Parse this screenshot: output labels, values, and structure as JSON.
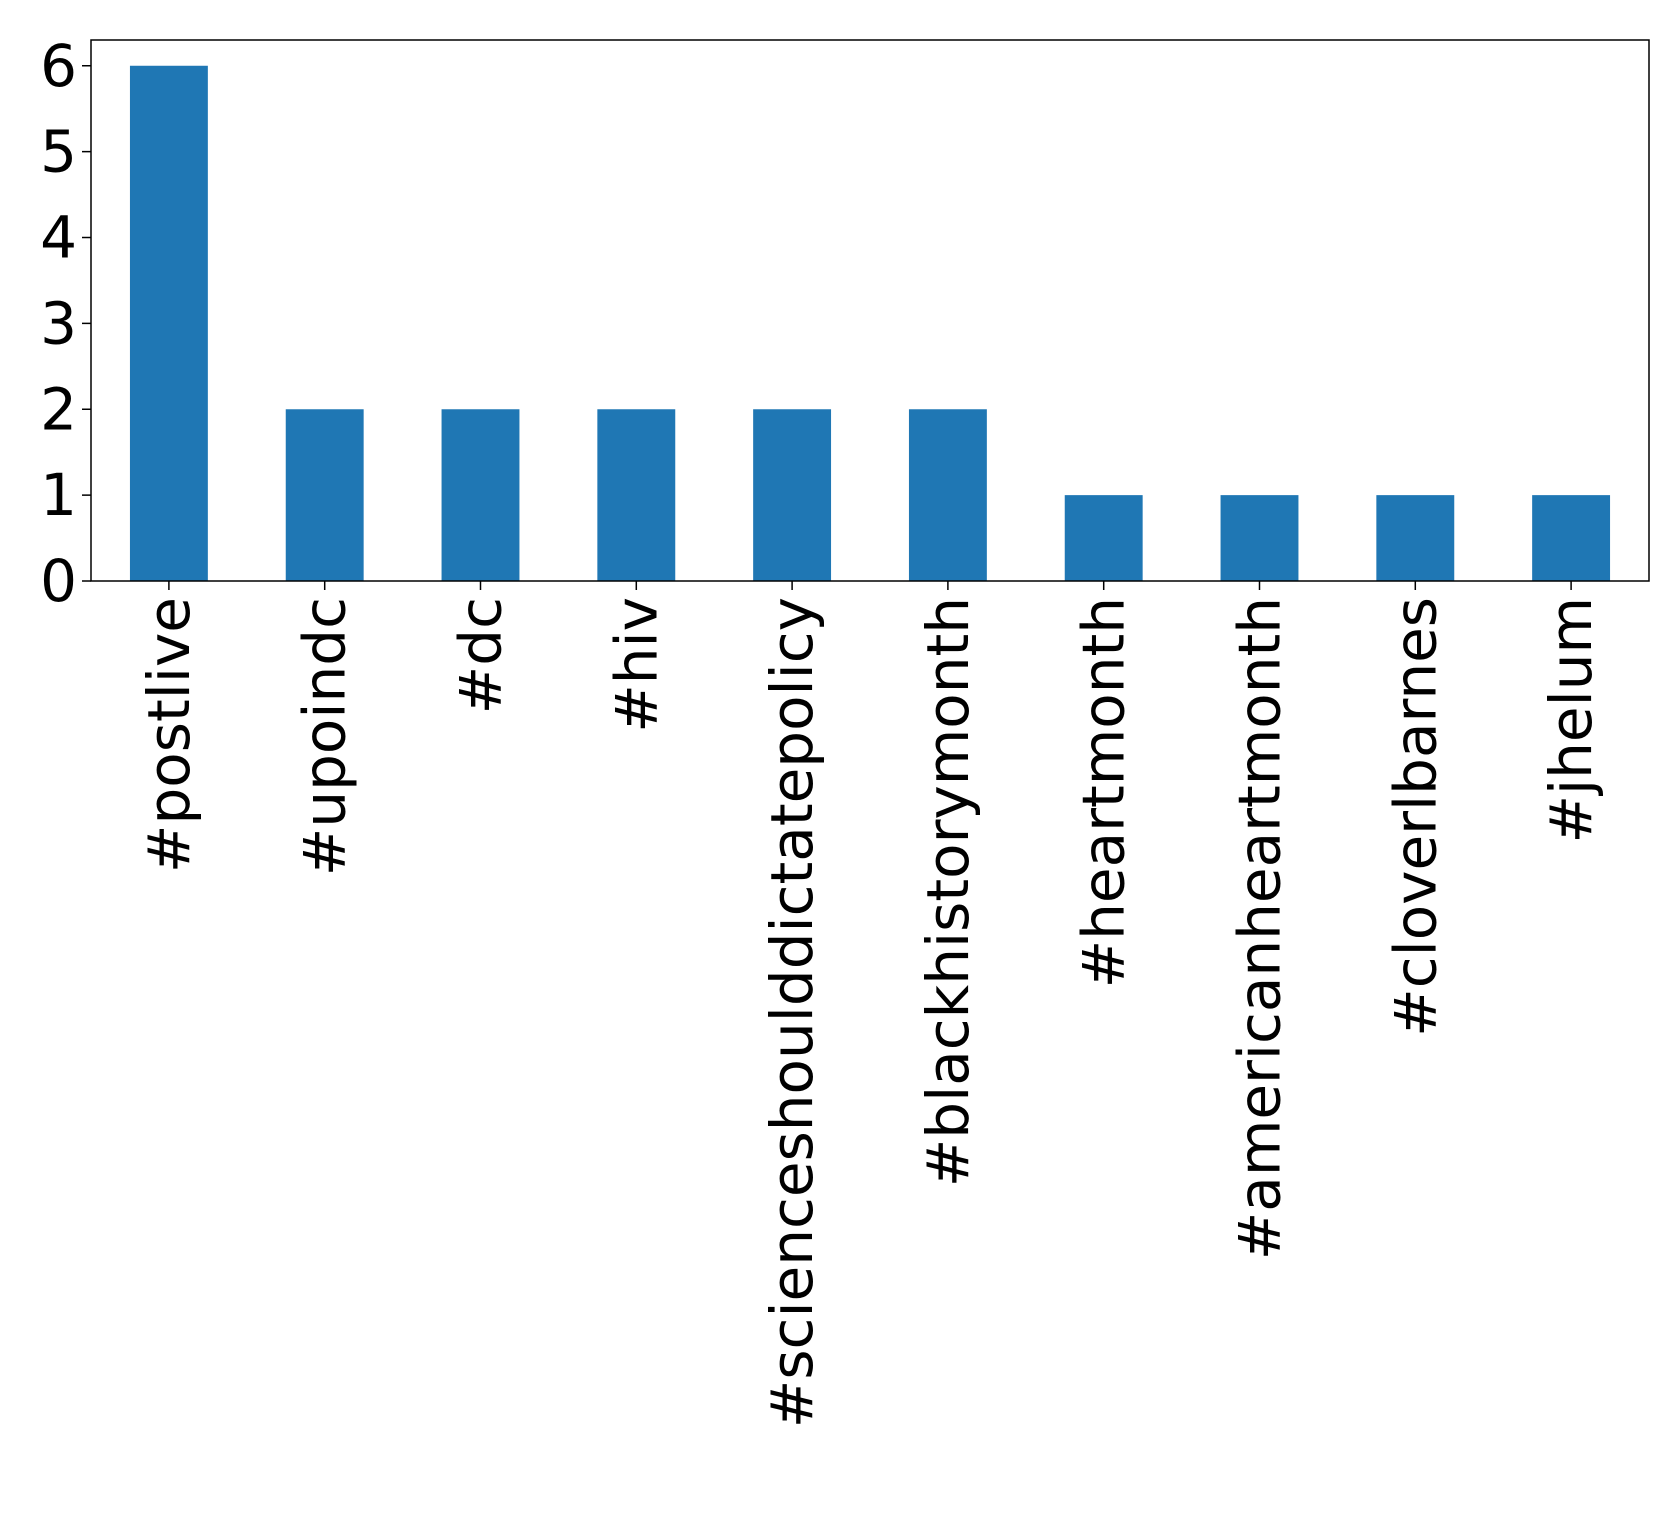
{
  "chart_data": {
    "type": "bar",
    "title": "",
    "xlabel": "",
    "ylabel": "",
    "categories": [
      "#postlive",
      "#upoindc",
      "#dc",
      "#hiv",
      "#scienceshoulddictatepolicy",
      "#blackhistorymonth",
      "#heartmonth",
      "#americanheartmonth",
      "#cloverlbarnes",
      "#jhelum"
    ],
    "values": [
      6,
      2,
      2,
      2,
      2,
      2,
      1,
      1,
      1,
      1
    ],
    "ylim": [
      0,
      6.3
    ],
    "yticks": [
      "0",
      "1",
      "2",
      "3",
      "4",
      "5",
      "6"
    ],
    "grid": false,
    "legend": "none",
    "colors": {
      "bar": "#1f77b4",
      "axis": "#000000"
    }
  }
}
